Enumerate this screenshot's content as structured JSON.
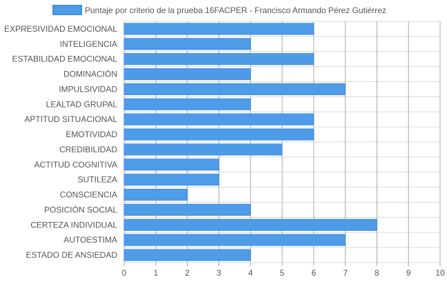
{
  "chart_data": {
    "type": "bar",
    "orientation": "horizontal",
    "legend": {
      "placement": "top-center",
      "entries": [
        "Puntaje por criterio de la prueba 16FACPER - Francisco Armando Pérez Gutiérrez"
      ]
    },
    "categories": [
      "EXPRESIVIDAD EMOCIONAL",
      "INTELIGENCIA",
      "ESTABILIDAD EMOCIONAL",
      "DOMINACIÓN",
      "IMPULSIVIDAD",
      "LEALTAD GRUPAL",
      "APTITUD SITUACIONAL",
      "EMOTIVIDAD",
      "CREDIBILIDAD",
      "ACTITUD COGNITIVA",
      "SUTILEZA",
      "CONSCIENCIA",
      "POSICIÓN SOCIAL",
      "CERTEZA INDIVIDUAL",
      "AUTOESTIMA",
      "ESTADO DE ANSIEDAD"
    ],
    "series": [
      {
        "name": "Puntaje por criterio de la prueba 16FACPER - Francisco Armando Pérez Gutiérrez",
        "values": [
          6,
          4,
          6,
          4,
          7,
          4,
          6,
          6,
          5,
          3,
          3,
          2,
          4,
          8,
          7,
          4
        ]
      }
    ],
    "xlim": [
      0,
      10
    ],
    "xticks": [
      "0",
      "1",
      "2",
      "3",
      "4",
      "5",
      "6",
      "7",
      "8",
      "9",
      "10"
    ],
    "grid": true,
    "colors": {
      "bar_fill": "#4e9be8",
      "bar_stroke": "#3d8ee3",
      "grid": "#d9d9d9",
      "grid_major": "#a8a8a8",
      "text": "#555555"
    }
  }
}
